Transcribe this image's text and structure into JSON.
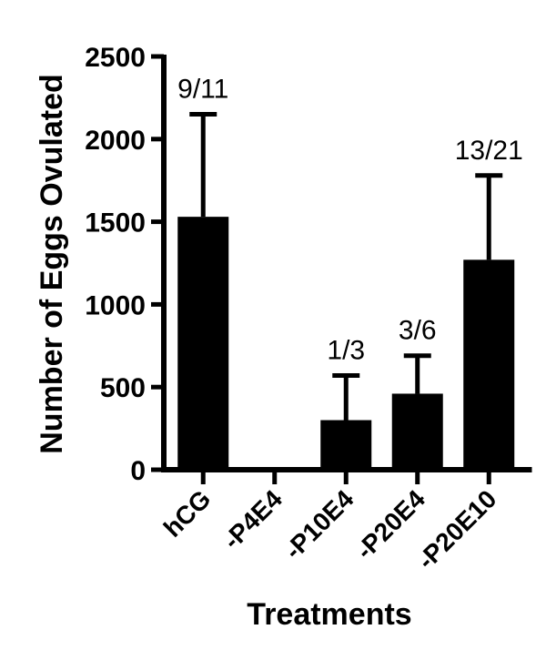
{
  "chart_data": {
    "type": "bar",
    "title": "",
    "xlabel": "Treatments",
    "ylabel": "Number of Eggs Ovulated",
    "categories": [
      "hCG",
      "-P4E4",
      "-P10E4",
      "-P20E4",
      "-P20E10"
    ],
    "values": [
      1530,
      0,
      300,
      460,
      1270
    ],
    "error_upper": [
      2150,
      0,
      570,
      690,
      1780
    ],
    "data_labels": [
      "9/11",
      "",
      "1/3",
      "3/6",
      "13/21"
    ],
    "ylim": [
      0,
      2500
    ],
    "yticks": [
      0,
      500,
      1000,
      1500,
      2000,
      2500
    ],
    "grid": false,
    "legend": "none",
    "bar_color": "#000000"
  }
}
